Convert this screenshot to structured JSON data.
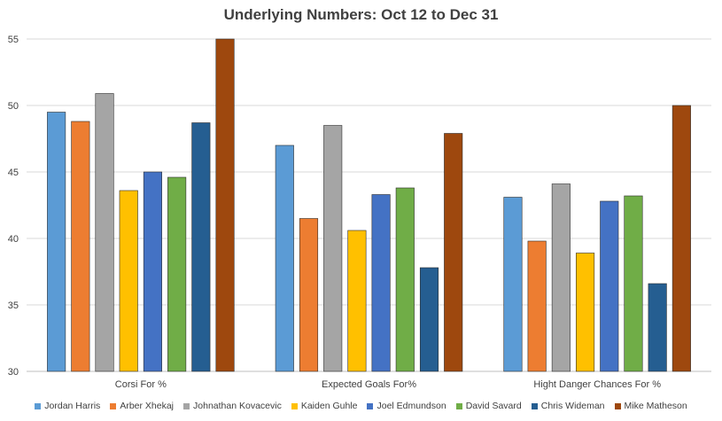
{
  "chart_data": {
    "type": "bar",
    "title": "Underlying Numbers: Oct 12 to Dec 31",
    "categories": [
      "Corsi For %",
      "Expected Goals For%",
      "Hight Danger Chances For %"
    ],
    "ylim": [
      30,
      55
    ],
    "yticks": [
      30,
      35,
      40,
      45,
      50,
      55
    ],
    "grid": true,
    "legend_position": "bottom",
    "series": [
      {
        "name": "Jordan Harris",
        "color": "#5b9bd5",
        "values": [
          49.5,
          47.0,
          43.1
        ]
      },
      {
        "name": "Arber Xhekaj",
        "color": "#ed7d31",
        "values": [
          48.8,
          41.5,
          39.8
        ]
      },
      {
        "name": "Johnathan Kovacevic",
        "color": "#a5a5a5",
        "values": [
          50.9,
          48.5,
          44.1
        ]
      },
      {
        "name": "Kaiden Guhle",
        "color": "#ffc000",
        "values": [
          43.6,
          40.6,
          38.9
        ]
      },
      {
        "name": "Joel Edmundson",
        "color": "#4472c4",
        "values": [
          45.0,
          43.3,
          42.8
        ]
      },
      {
        "name": "David Savard",
        "color": "#70ad47",
        "values": [
          44.6,
          43.8,
          43.2
        ]
      },
      {
        "name": "Chris Wideman",
        "color": "#255e91",
        "values": [
          48.7,
          37.8,
          36.6
        ]
      },
      {
        "name": "Mike Matheson",
        "color": "#9e480e",
        "values": [
          55.0,
          47.9,
          50.0
        ]
      }
    ]
  }
}
